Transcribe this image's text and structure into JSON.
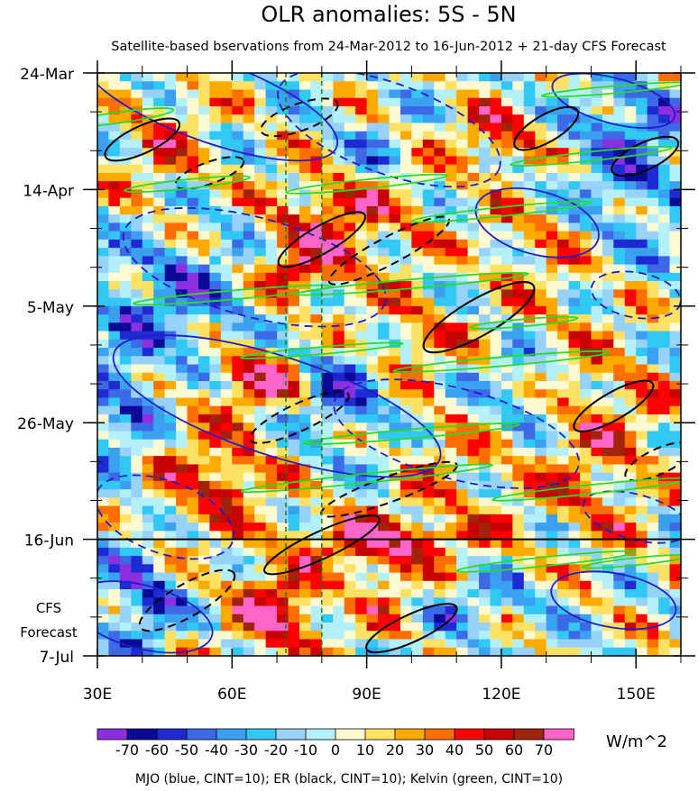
{
  "chart_data": {
    "type": "heatmap",
    "title": "OLR anomalies: 5S - 5N",
    "subtitle": "Satellite-based bservations from 24-Mar-2012 to 16-Jun-2012 + 21-day CFS Forecast",
    "x_ticks": [
      "30E",
      "60E",
      "90E",
      "120E",
      "150E"
    ],
    "x_tick_values": [
      30,
      60,
      90,
      120,
      150
    ],
    "xlim": [
      30,
      160
    ],
    "y_ticks": [
      "24-Mar",
      "14-Apr",
      "5-May",
      "26-May",
      "16-Jun",
      "7-Jul"
    ],
    "y_tick_days": [
      0,
      21,
      42,
      63,
      84,
      105
    ],
    "ylim": [
      0,
      105
    ],
    "observation_end": "16-Jun",
    "forecast_label_line1": "CFS",
    "forecast_label_line2": "Forecast",
    "reference_lines_lon": [
      72,
      80
    ],
    "colorbar": {
      "unit": "W/m^2",
      "levels": [
        -70,
        -60,
        -50,
        -40,
        -30,
        -20,
        -10,
        0,
        10,
        20,
        30,
        40,
        50,
        60,
        70
      ],
      "level_labels": [
        "-70",
        "-60",
        "-50",
        "-40",
        "-30",
        "-20",
        "-10",
        "0",
        "10",
        "20",
        "30",
        "40",
        "50",
        "60",
        "70"
      ],
      "colors": [
        "#8c2fe0",
        "#0a0a96",
        "#1e2ad2",
        "#3c6ae6",
        "#3ca0f0",
        "#32c8f5",
        "#96d2fa",
        "#b4f0fa",
        "#fffad2",
        "#ffe164",
        "#ffaa00",
        "#ff6e00",
        "#ff0000",
        "#c80000",
        "#a0230a",
        "#ff64c8"
      ]
    },
    "contour_caption": "MJO (blue, CINT=10); ER (black, CINT=10); Kelvin (green, CINT=10)",
    "series": [
      {
        "name": "MJO",
        "color": "#1e1ec8"
      },
      {
        "name": "ER",
        "color": "#000000"
      },
      {
        "name": "Kelvin",
        "color": "#28dc28"
      }
    ]
  }
}
